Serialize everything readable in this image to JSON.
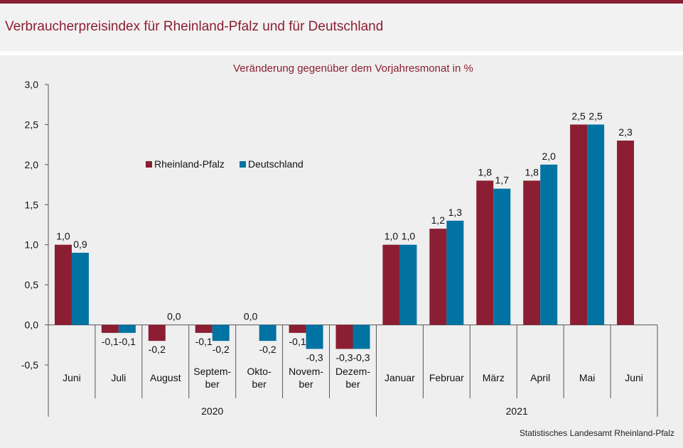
{
  "header": {
    "title": "Verbraucherpreisindex für Rheinland-Pfalz und für Deutschland"
  },
  "footer": {
    "source": "Statistisches Landesamt Rheinland-Pfalz"
  },
  "colors": {
    "rlp": "#8b1e32",
    "de": "#0073a3",
    "title": "#8b1e32"
  },
  "chart_data": {
    "type": "bar",
    "title": "Veränderung gegenüber dem Vorjahresmonat in %",
    "ylim": [
      -0.5,
      3.0
    ],
    "yticks": [
      "3,0",
      "2,5",
      "2,0",
      "1,5",
      "1,0",
      "0,5",
      "0,0",
      "-0,5"
    ],
    "ytick_values": [
      3.0,
      2.5,
      2.0,
      1.5,
      1.0,
      0.5,
      0.0,
      -0.5
    ],
    "categories": [
      [
        "Juni"
      ],
      [
        "Juli"
      ],
      [
        "August"
      ],
      [
        "Septem-",
        "ber"
      ],
      [
        "Okto-",
        "ber"
      ],
      [
        "Novem-",
        "ber"
      ],
      [
        "Dezem-",
        "ber"
      ],
      [
        "Januar"
      ],
      [
        "Februar"
      ],
      [
        "März"
      ],
      [
        "April"
      ],
      [
        "Mai"
      ],
      [
        "Juni"
      ]
    ],
    "year_groups": [
      {
        "label": "2020",
        "start": 0,
        "end": 6
      },
      {
        "label": "2021",
        "start": 7,
        "end": 12
      }
    ],
    "legend_position": "center-left",
    "grid": false,
    "series": [
      {
        "name": "Rheinland-Pfalz",
        "values": [
          1.0,
          -0.1,
          -0.2,
          -0.1,
          0.0,
          -0.1,
          -0.3,
          1.0,
          1.2,
          1.8,
          1.8,
          2.5,
          2.3
        ],
        "labels": [
          "1,0",
          "-0,1",
          "-0,2",
          "-0,1",
          "0,0",
          "-0,1",
          "-0,3",
          "1,0",
          "1,2",
          "1,8",
          "1,8",
          "2,5",
          "2,3"
        ]
      },
      {
        "name": "Deutschland",
        "values": [
          0.9,
          -0.1,
          0.0,
          -0.2,
          -0.2,
          -0.3,
          -0.3,
          1.0,
          1.3,
          1.7,
          2.0,
          2.5,
          null
        ],
        "labels": [
          "0,9",
          "-0,1",
          "0,0",
          "-0,2",
          "-0,2",
          "-0,3",
          "-0,3",
          "1,0",
          "1,3",
          "1,7",
          "2,0",
          "2,5",
          null
        ]
      }
    ]
  }
}
